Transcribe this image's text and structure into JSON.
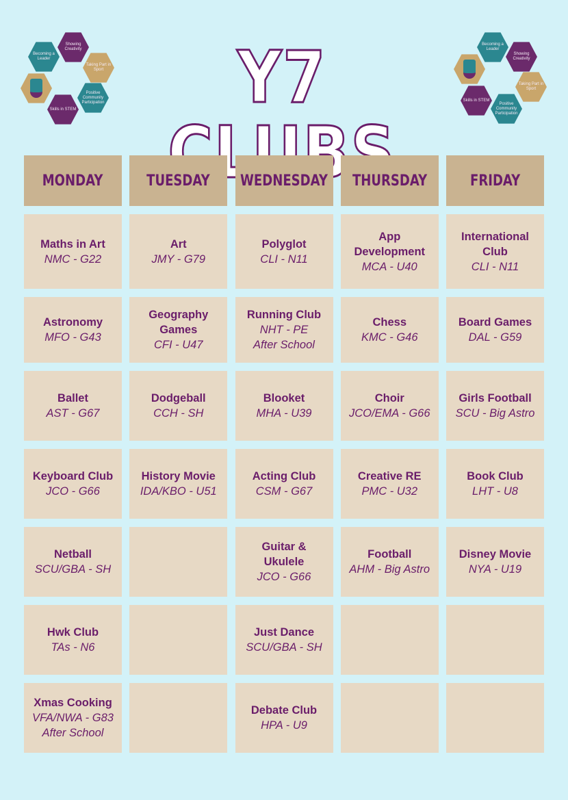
{
  "title": "Y7 CLUBS",
  "logo": {
    "hexes": [
      "Becoming a Leader",
      "Showing Creativity",
      "Taking Part in Sport",
      "Positive Community Participation",
      "Skills in STEM"
    ]
  },
  "days": [
    "MONDAY",
    "TUESDAY",
    "WEDNESDAY",
    "THURSDAY",
    "FRIDAY"
  ],
  "rows": [
    [
      {
        "name": "Maths in Art",
        "info": [
          "NMC - G22"
        ]
      },
      {
        "name": "Art",
        "info": [
          "JMY - G79"
        ]
      },
      {
        "name": "Polyglot",
        "info": [
          "CLI - N11"
        ]
      },
      {
        "name": "App Development",
        "info": [
          "MCA - U40"
        ]
      },
      {
        "name": "International Club",
        "info": [
          "CLI - N11"
        ]
      }
    ],
    [
      {
        "name": "Astronomy",
        "info": [
          "MFO - G43"
        ]
      },
      {
        "name": "Geography Games",
        "info": [
          "CFI - U47"
        ]
      },
      {
        "name": "Running Club",
        "info": [
          "NHT - PE",
          "After School"
        ]
      },
      {
        "name": "Chess",
        "info": [
          "KMC - G46"
        ]
      },
      {
        "name": "Board Games",
        "info": [
          "DAL - G59"
        ]
      }
    ],
    [
      {
        "name": "Ballet",
        "info": [
          "AST - G67"
        ]
      },
      {
        "name": "Dodgeball",
        "info": [
          "CCH - SH"
        ]
      },
      {
        "name": "Blooket",
        "info": [
          "MHA - U39"
        ]
      },
      {
        "name": "Choir",
        "info": [
          "JCO/EMA - G66"
        ]
      },
      {
        "name": "Girls Football",
        "info": [
          "SCU - Big Astro"
        ]
      }
    ],
    [
      {
        "name": "Keyboard Club",
        "info": [
          "JCO - G66"
        ]
      },
      {
        "name": "History Movie",
        "info": [
          "IDA/KBO - U51"
        ]
      },
      {
        "name": "Acting Club",
        "info": [
          "CSM - G67"
        ]
      },
      {
        "name": "Creative RE",
        "info": [
          "PMC - U32"
        ]
      },
      {
        "name": "Book Club",
        "info": [
          "LHT - U8"
        ]
      }
    ],
    [
      {
        "name": "Netball",
        "info": [
          "SCU/GBA - SH"
        ]
      },
      null,
      {
        "name": "Guitar & Ukulele",
        "info": [
          "JCO - G66"
        ]
      },
      {
        "name": "Football",
        "info": [
          "AHM - Big Astro"
        ]
      },
      {
        "name": "Disney Movie",
        "info": [
          "NYA - U19"
        ]
      }
    ],
    [
      {
        "name": "Hwk Club",
        "info": [
          "TAs - N6"
        ]
      },
      null,
      {
        "name": "Just Dance",
        "info": [
          "SCU/GBA - SH"
        ]
      },
      null,
      null
    ],
    [
      {
        "name": "Xmas Cooking",
        "info": [
          "VFA/NWA - G83",
          "After School"
        ]
      },
      null,
      {
        "name": "Debate Club",
        "info": [
          "HPA - U9"
        ]
      },
      null,
      null
    ]
  ],
  "colors": {
    "background": "#d3f2f8",
    "header": "#c9b391",
    "cell": "#e7d9c5",
    "text": "#6a1d6a"
  }
}
